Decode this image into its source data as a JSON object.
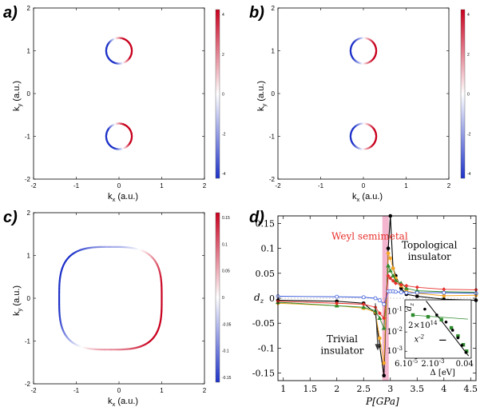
{
  "chart_data": [
    {
      "id": "a",
      "type": "scatter",
      "panel_label": "a)",
      "xlabel": "k_x (a.u.)",
      "ylabel": "k_y (a.u.)",
      "xlim": [
        -2,
        2
      ],
      "ylim": [
        -2,
        2
      ],
      "xticks": [
        "-2",
        "-1",
        "0",
        "1",
        "2"
      ],
      "yticks": [
        "-2",
        "-1",
        "0",
        "1",
        "2"
      ],
      "colorbar": {
        "range": [
          -4,
          4
        ],
        "ticks": [
          "4",
          "2",
          "0",
          "-2",
          "-4"
        ]
      },
      "curves": [
        {
          "shape": "circle",
          "center": [
            0,
            1
          ],
          "radius": 0.3,
          "color_pattern": "split"
        },
        {
          "shape": "circle",
          "center": [
            0,
            -1
          ],
          "radius": 0.3,
          "color_pattern": "split"
        }
      ]
    },
    {
      "id": "b",
      "type": "scatter",
      "panel_label": "b)",
      "xlabel": "k_x (a.u.)",
      "ylabel": "k_y (a.u.)",
      "xlim": [
        -2,
        2
      ],
      "ylim": [
        -2,
        2
      ],
      "xticks": [
        "-2",
        "-1",
        "0",
        "1",
        "2"
      ],
      "yticks": [
        "-2",
        "-1",
        "0",
        "1",
        "2"
      ],
      "colorbar": {
        "range": [
          -4,
          4
        ],
        "ticks": [
          "4",
          "2",
          "0",
          "-2",
          "-4"
        ]
      },
      "curves": [
        {
          "shape": "circle",
          "center": [
            0,
            1
          ],
          "radius": 0.3,
          "color_pattern": "weak"
        },
        {
          "shape": "circle",
          "center": [
            0,
            -1
          ],
          "radius": 0.3,
          "color_pattern": "weak"
        }
      ]
    },
    {
      "id": "c",
      "type": "scatter",
      "panel_label": "c)",
      "xlabel": "k_x (a.u.)",
      "ylabel": "k_y (a.u.)",
      "xlim": [
        -2,
        2
      ],
      "ylim": [
        -2,
        2
      ],
      "xticks": [
        "-2",
        "-1",
        "0",
        "1",
        "2"
      ],
      "yticks": [
        "-2",
        "-1",
        "0",
        "1",
        "2"
      ],
      "colorbar": {
        "range": [
          -0.15,
          0.15
        ],
        "ticks": [
          "0.15",
          "0.1",
          "0.05",
          "0",
          "-0.05",
          "-0.1",
          "-0.15"
        ]
      },
      "curves": [
        {
          "shape": "superellipse",
          "center": [
            -0.2,
            0
          ],
          "radius": [
            1.2,
            1.2
          ],
          "color_pattern": "quadrant"
        }
      ]
    },
    {
      "id": "d",
      "type": "line",
      "panel_label": "d)",
      "xlabel": "P[GPa]",
      "ylabel": "d_z",
      "xlim": [
        0.9,
        4.6
      ],
      "ylim": [
        -0.165,
        0.165
      ],
      "xticks": [
        "1",
        "1.5",
        "2",
        "2.5",
        "3",
        "3.5",
        "4",
        "4.5"
      ],
      "yticks": [
        "0.15",
        "0.1",
        "0.05",
        "0",
        "-0.05",
        "-0.1",
        "-0.15"
      ],
      "highlight_band": [
        2.85,
        2.97
      ],
      "annotations": [
        "Weyl semimetal",
        "Topological insulator",
        "Trivial insulator"
      ],
      "series": [
        {
          "name": "black",
          "color": "#000000",
          "x": [
            0.9,
            2.0,
            2.5,
            2.72,
            2.8,
            2.88,
            2.96,
            3.0,
            3.05,
            3.1,
            3.2,
            3.3,
            3.5,
            4.0,
            4.6
          ],
          "y": [
            -0.004,
            -0.006,
            -0.01,
            -0.03,
            -0.095,
            -0.155,
            0.1,
            0.165,
            0.06,
            0.045,
            0.02,
            0.008,
            0.004,
            -0.002,
            -0.004
          ]
        },
        {
          "name": "orange",
          "color": "#f5a623",
          "x": [
            0.9,
            2.0,
            2.5,
            2.72,
            2.8,
            2.88,
            2.96,
            3.0,
            3.05,
            3.1,
            3.2,
            3.3,
            3.5,
            4.0,
            4.6
          ],
          "y": [
            -0.01,
            -0.015,
            -0.02,
            -0.028,
            -0.08,
            -0.13,
            0.09,
            0.08,
            0.06,
            0.04,
            0.025,
            0.015,
            0.01,
            0.005,
            0.006
          ]
        },
        {
          "name": "green",
          "color": "#2e8b2e",
          "x": [
            0.9,
            2.0,
            2.5,
            2.72,
            2.8,
            2.88,
            2.96,
            3.0,
            3.05,
            3.1,
            3.2,
            3.3,
            3.5,
            4.0,
            4.6
          ],
          "y": [
            -0.008,
            -0.015,
            -0.018,
            -0.025,
            -0.04,
            -0.06,
            0.065,
            0.055,
            0.045,
            0.035,
            0.03,
            0.02,
            0.015,
            0.013,
            0.012
          ]
        },
        {
          "name": "red",
          "color": "#e8302c",
          "x": [
            0.9,
            2.0,
            2.5,
            2.72,
            2.8,
            2.88,
            2.96,
            3.0,
            3.05,
            3.1,
            3.2,
            3.3,
            3.5,
            4.0,
            4.6
          ],
          "y": [
            -0.006,
            -0.01,
            -0.012,
            -0.018,
            -0.03,
            -0.04,
            0.045,
            0.04,
            0.035,
            0.03,
            0.027,
            0.025,
            0.022,
            0.018,
            0.017
          ]
        },
        {
          "name": "blue",
          "color": "#3b5bdb",
          "x": [
            0.9,
            2.0,
            2.5,
            2.72,
            2.8,
            2.88,
            2.96,
            3.0,
            3.05,
            3.1,
            3.2,
            3.3,
            3.5,
            4.0,
            4.6
          ],
          "y": [
            0.004,
            0.003,
            0.002,
            0.0,
            -0.004,
            -0.012,
            0.014,
            0.014,
            0.014,
            0.013,
            0.012,
            0.011,
            0.011,
            0.011,
            0.01
          ]
        }
      ],
      "arrow": {
        "from": [
          2.72,
          -0.01
        ],
        "to": [
          2.72,
          -0.1
        ]
      },
      "inset": {
        "type": "scatter",
        "scale": "log-log",
        "ylabel": "d_z",
        "xlabel": "Δ [eV]",
        "xlim_label": [
          "6.10^-5",
          "2.10^-3",
          "0.04"
        ],
        "yticks": [
          "10^-1",
          "10^-2",
          "10^-3"
        ],
        "legend_text": "2×10^14",
        "legend_formula": "x^-2",
        "points_black": [
          [
            0.3,
            0.84
          ],
          [
            0.48,
            0.74
          ],
          [
            0.62,
            0.62
          ],
          [
            0.72,
            0.48
          ],
          [
            0.8,
            0.35
          ],
          [
            0.86,
            0.22
          ],
          [
            0.92,
            0.1
          ]
        ],
        "points_green": [
          [
            0.12,
            0.74
          ],
          [
            0.35,
            0.71
          ],
          [
            0.55,
            0.66
          ],
          [
            0.7,
            0.52
          ],
          [
            0.8,
            0.38
          ],
          [
            0.88,
            0.23
          ],
          [
            0.93,
            0.12
          ]
        ]
      }
    }
  ]
}
